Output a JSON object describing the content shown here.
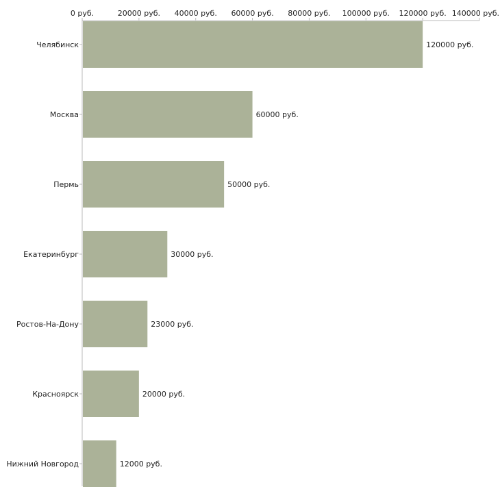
{
  "chart_data": {
    "type": "bar",
    "orientation": "horizontal",
    "title": "",
    "xlabel": "",
    "ylabel": "",
    "categories": [
      "Челябинск",
      "Москва",
      "Пермь",
      "Екатеринбург",
      "Ростов-На-Дону",
      "Красноярск",
      "Нижний Новгород"
    ],
    "values": [
      120000,
      60000,
      50000,
      30000,
      23000,
      20000,
      12000
    ],
    "value_labels": [
      "120000 руб.",
      "60000 руб.",
      "50000 руб.",
      "30000 руб.",
      "23000 руб.",
      "20000 руб.",
      "12000 руб."
    ],
    "xlim": [
      0,
      140000
    ],
    "ticks": [
      0,
      20000,
      40000,
      60000,
      80000,
      100000,
      120000,
      140000
    ],
    "tick_labels": [
      "0 руб.",
      "20000 руб.",
      "40000 руб.",
      "60000 руб.",
      "80000 руб.",
      "100000 руб.",
      "120000 руб.",
      "140000 руб."
    ],
    "axis_position": "top",
    "grid": false,
    "bar_color": "#abb298",
    "axis_color": "#bbbbbb",
    "text_color": "#222222"
  }
}
